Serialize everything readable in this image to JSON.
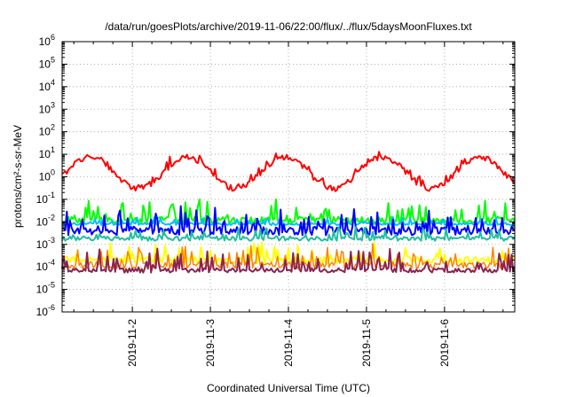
{
  "chart_data": {
    "type": "line",
    "title": "/data/run/goesPlots/archive/2019-11-06/22:00/flux/../flux/5daysMoonFluxes.txt",
    "xlabel": "Coordinated Universal Time (UTC)",
    "ylabel": "protons/cm²-s-sr-MeV",
    "yscale": "log",
    "ylim": [
      1e-06,
      1000000.0
    ],
    "xlim_days": [
      1.1,
      6.9
    ],
    "xlim_dates": [
      "2019-11-01 02:24",
      "2019-11-06 21:36"
    ],
    "grid": true,
    "x_ticks": [
      {
        "value": 2,
        "label": "2019-11-2"
      },
      {
        "value": 3,
        "label": "2019-11-3"
      },
      {
        "value": 4,
        "label": "2019-11-4"
      },
      {
        "value": 5,
        "label": "2019-11-5"
      },
      {
        "value": 6,
        "label": "2019-11-6"
      }
    ],
    "y_ticks": [
      {
        "exp": -6,
        "base": "10",
        "sup": "-6"
      },
      {
        "exp": -5,
        "base": "10",
        "sup": "-5"
      },
      {
        "exp": -4,
        "base": "10",
        "sup": "-4"
      },
      {
        "exp": -3,
        "base": "10",
        "sup": "-3"
      },
      {
        "exp": -2,
        "base": "10",
        "sup": "-2"
      },
      {
        "exp": -1,
        "base": "10",
        "sup": "-1"
      },
      {
        "exp": 0,
        "base": "10",
        "sup": "0"
      },
      {
        "exp": 1,
        "base": "10",
        "sup": "1"
      },
      {
        "exp": 2,
        "base": "10",
        "sup": "2"
      },
      {
        "exp": 3,
        "base": "10",
        "sup": "3"
      },
      {
        "exp": 4,
        "base": "10",
        "sup": "4"
      },
      {
        "exp": 5,
        "base": "10",
        "sup": "5"
      },
      {
        "exp": 6,
        "base": "10",
        "sup": "6"
      }
    ],
    "series": [
      {
        "color": "#ff0000",
        "base": 0.3,
        "amp": 1.4,
        "period": 1.25,
        "phase": -0.2,
        "spikes": 0.25,
        "noise": 0.12,
        "width": 2
      },
      {
        "color": "#00ff00",
        "base": 0.012,
        "amp": 0,
        "spikes": 0.7,
        "noise": 0.15,
        "width": 2
      },
      {
        "color": "#00c0ff",
        "base": 0.008,
        "amp": 0,
        "spikes": 0.25,
        "noise": 0.05,
        "width": 2
      },
      {
        "color": "#0000ff",
        "base": 0.004,
        "amp": 0,
        "spikes": 0.8,
        "noise": 0.2,
        "width": 2
      },
      {
        "color": "#20c0a0",
        "base": 0.0018,
        "amp": 0,
        "spikes": 0.4,
        "noise": 0.1,
        "width": 2
      },
      {
        "color": "#ffff00",
        "base": 0.0002,
        "amp": 0,
        "spikes": 0.6,
        "noise": 0.15,
        "width": 2
      },
      {
        "color": "#ff8000",
        "base": 0.00012,
        "amp": 0,
        "spikes": 0.7,
        "noise": 0.15,
        "width": 1.5
      },
      {
        "color": "#8b2252",
        "base": 7e-05,
        "amp": 0,
        "spikes": 0.75,
        "noise": 0.1,
        "width": 2
      }
    ]
  }
}
